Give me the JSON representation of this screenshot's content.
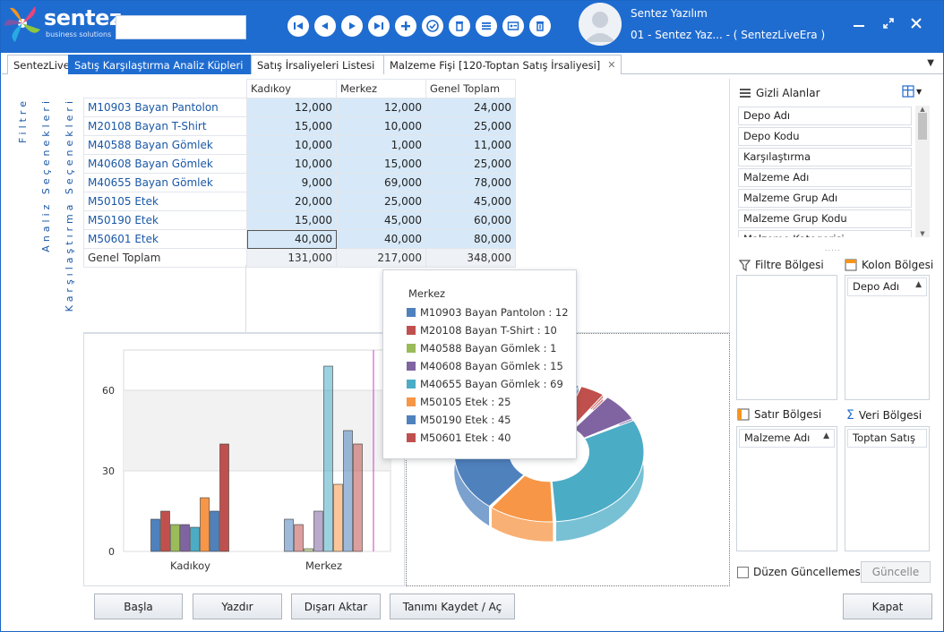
{
  "app": {
    "brand": "sentez",
    "brand_tagline": "business solutions",
    "user_name": "Sentez Yazılım",
    "user_firm": "01 - Sentez Yaz... - ( SentezLiveEra )"
  },
  "toolbar": {
    "icons": [
      "first-record-icon",
      "previous-record-icon",
      "next-record-icon",
      "last-record-icon",
      "add-icon",
      "approve-icon",
      "delete-icon",
      "list-icon",
      "card-icon",
      "trash-icon"
    ]
  },
  "tabs": [
    {
      "label": "SentezLive"
    },
    {
      "label": "Satış Karşılaştırma Analiz Küpleri",
      "active": true
    },
    {
      "label": "Satış İrsaliyeleri Listesi"
    },
    {
      "label": "Malzeme Fişi  [120-Toptan Satış İrsaliyesi]"
    }
  ],
  "side_labels": {
    "filter": "Filtre",
    "analysis": "Analiz Seçenekleri",
    "comparison": "Karşılaştırma Seçenekleri"
  },
  "pivot": {
    "columns": [
      "Kadıkoy",
      "Merkez",
      "Genel Toplam"
    ],
    "rows": [
      {
        "label": "M10903 Bayan Pantolon",
        "values": [
          "12,000",
          "12,000",
          "24,000"
        ]
      },
      {
        "label": "M20108 Bayan T-Shirt",
        "values": [
          "15,000",
          "10,000",
          "25,000"
        ]
      },
      {
        "label": "M40588 Bayan Gömlek",
        "values": [
          "10,000",
          "1,000",
          "11,000"
        ]
      },
      {
        "label": "M40608 Bayan Gömlek",
        "values": [
          "10,000",
          "15,000",
          "25,000"
        ]
      },
      {
        "label": "M40655 Bayan Gömlek",
        "values": [
          "9,000",
          "69,000",
          "78,000"
        ]
      },
      {
        "label": "M50105 Etek",
        "values": [
          "20,000",
          "25,000",
          "45,000"
        ]
      },
      {
        "label": "M50190 Etek",
        "values": [
          "15,000",
          "45,000",
          "60,000"
        ]
      },
      {
        "label": "M50601 Etek",
        "values": [
          "40,000",
          "40,000",
          "80,000"
        ]
      }
    ],
    "total_label": "Genel Toplam",
    "totals": [
      "131,000",
      "217,000",
      "348,000"
    ]
  },
  "chart_data": [
    {
      "type": "bar",
      "categories": [
        "Kadıkoy",
        "Merkez"
      ],
      "y_ticks": [
        "0",
        "30",
        "60"
      ],
      "ylim": [
        0,
        75
      ],
      "series": [
        {
          "name": "M10903 Bayan Pantolon",
          "color": "#4f81bd",
          "values": [
            12,
            12
          ]
        },
        {
          "name": "M20108 Bayan T-Shirt",
          "color": "#c0504d",
          "values": [
            15,
            10
          ]
        },
        {
          "name": "M40588 Bayan Gömlek",
          "color": "#9bbb59",
          "values": [
            10,
            1
          ]
        },
        {
          "name": "M40608 Bayan Gömlek",
          "color": "#8064a2",
          "values": [
            10,
            15
          ]
        },
        {
          "name": "M40655 Bayan Gömlek",
          "color": "#4bacc6",
          "values": [
            9,
            69
          ]
        },
        {
          "name": "M50105 Etek",
          "color": "#f79646",
          "values": [
            20,
            25
          ]
        },
        {
          "name": "M50190 Etek",
          "color": "#4f81bd",
          "values": [
            15,
            45
          ]
        },
        {
          "name": "M50601 Etek",
          "color": "#c0504d",
          "values": [
            40,
            40
          ]
        }
      ]
    },
    {
      "type": "pie",
      "variant": "doughnut-3d",
      "rings": [
        {
          "name": "Kadıkoy",
          "values": [
            12,
            15,
            10,
            10,
            9,
            20,
            15,
            40
          ]
        },
        {
          "name": "Merkez",
          "values": [
            12,
            10,
            1,
            15,
            69,
            25,
            45,
            40
          ]
        }
      ]
    }
  ],
  "tooltip": {
    "title": "Merkez",
    "items": [
      {
        "color": "#4f81bd",
        "text": "M10903 Bayan Pantolon : 12"
      },
      {
        "color": "#c0504d",
        "text": "M20108 Bayan T-Shirt : 10"
      },
      {
        "color": "#9bbb59",
        "text": "M40588 Bayan Gömlek : 1"
      },
      {
        "color": "#8064a2",
        "text": "M40608 Bayan Gömlek : 15"
      },
      {
        "color": "#4bacc6",
        "text": "M40655 Bayan Gömlek : 69"
      },
      {
        "color": "#f79646",
        "text": "M50105 Etek : 25"
      },
      {
        "color": "#4f81bd",
        "text": "M50190 Etek : 45"
      },
      {
        "color": "#c0504d",
        "text": "M50601 Etek : 40"
      }
    ]
  },
  "right_panel": {
    "hidden_fields_title": "Gizli Alanlar",
    "hidden_fields": [
      "Depo Adı",
      "Depo Kodu",
      "Karşılaştırma",
      "Malzeme Adı",
      "Malzeme Grup Adı",
      "Malzeme Grup Kodu",
      "Malzeme Kategorisi"
    ],
    "filter_area_title": "Filtre Bölgesi",
    "column_area_title": "Kolon Bölgesi",
    "column_fields": [
      "Depo Adı"
    ],
    "row_area_title": "Satır Bölgesi",
    "row_fields": [
      "Malzeme Adı"
    ],
    "data_area_title": "Veri Bölgesi",
    "data_fields": [
      "Toptan Satış"
    ],
    "defer_update_label": "Düzen Güncellemesini Ertele",
    "update_button": "Güncelle"
  },
  "bottom_buttons": {
    "start": "Başla",
    "print": "Yazdır",
    "export": "Dışarı Aktar",
    "save_def": "Tanımı Kaydet / Aç",
    "close": "Kapat"
  }
}
